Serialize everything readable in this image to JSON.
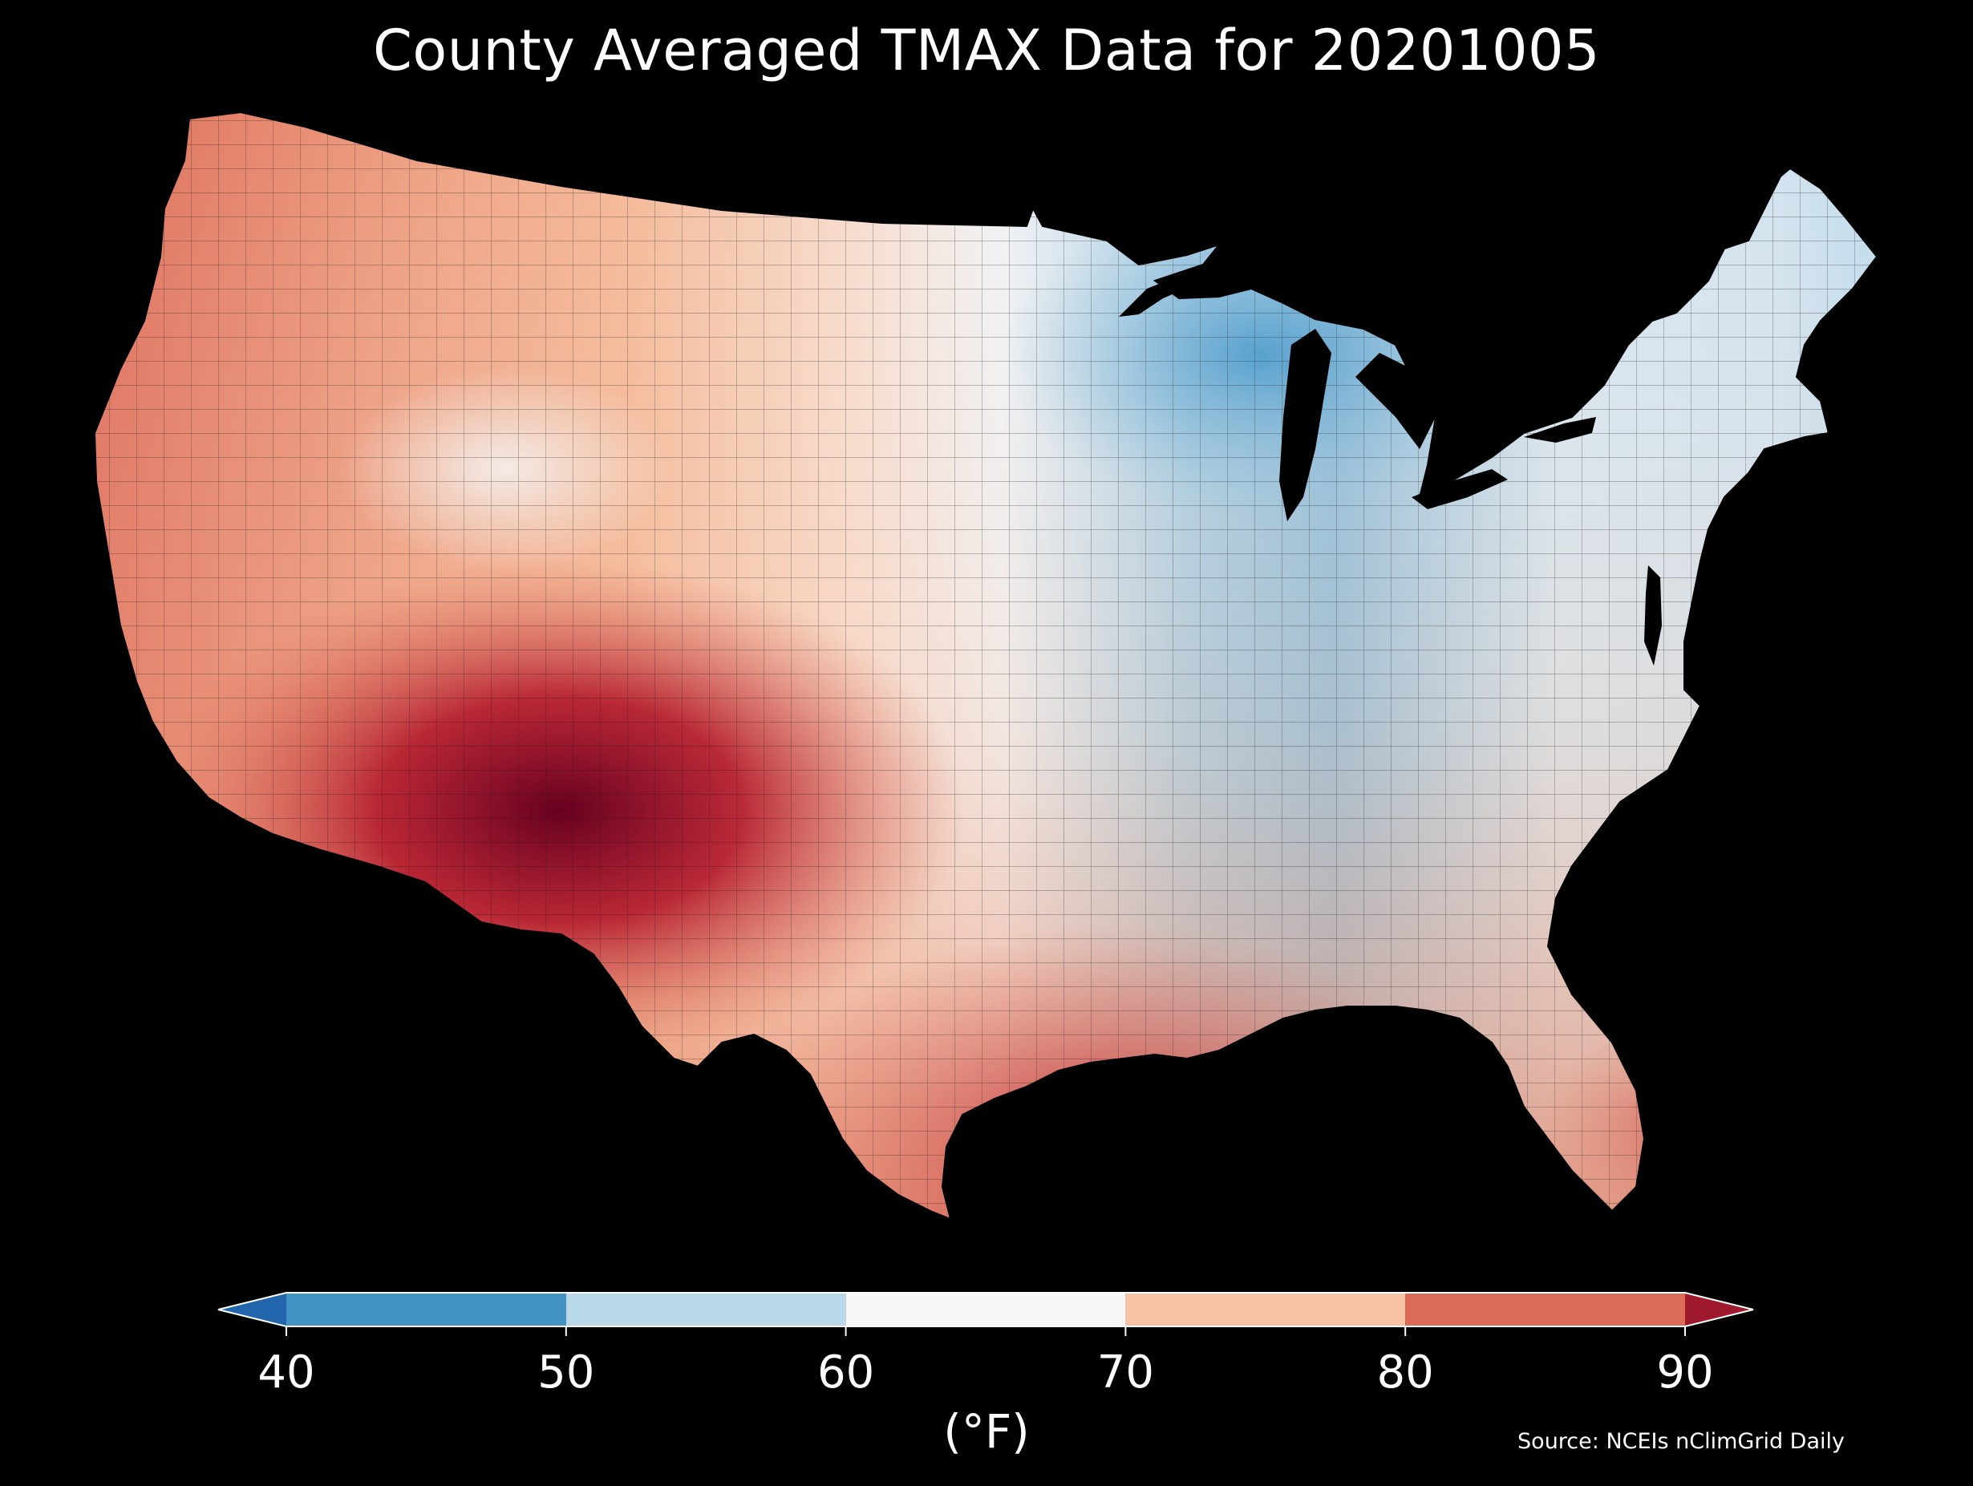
{
  "title": "County Averaged TMAX Data for 20201005",
  "colorbar": {
    "ticks": [
      "40",
      "50",
      "60",
      "70",
      "80",
      "90"
    ],
    "tick_values": [
      40,
      50,
      60,
      70,
      80,
      90
    ],
    "range": [
      40,
      90
    ],
    "extend": "both",
    "bins": [
      {
        "min": 40,
        "max": 50,
        "color": "#4393c3"
      },
      {
        "min": 50,
        "max": 60,
        "color": "#b9d8ea"
      },
      {
        "min": 60,
        "max": 70,
        "color": "#f7f7f7"
      },
      {
        "min": 70,
        "max": 80,
        "color": "#f8c2a4"
      },
      {
        "min": 80,
        "max": 90,
        "color": "#dc6b57"
      }
    ],
    "under_color": "#2166ac",
    "over_color": "#9e1a2c",
    "unit_label": "(°F)"
  },
  "source": "Source: NCEIs nClimGrid Daily",
  "colors": {
    "background": "#000000",
    "water": "#000000",
    "county_outline": "#1a1a1a",
    "text": "#ffffff"
  },
  "map": {
    "region": "contiguous United States",
    "projection": "conic",
    "field": "TMAX"
  }
}
